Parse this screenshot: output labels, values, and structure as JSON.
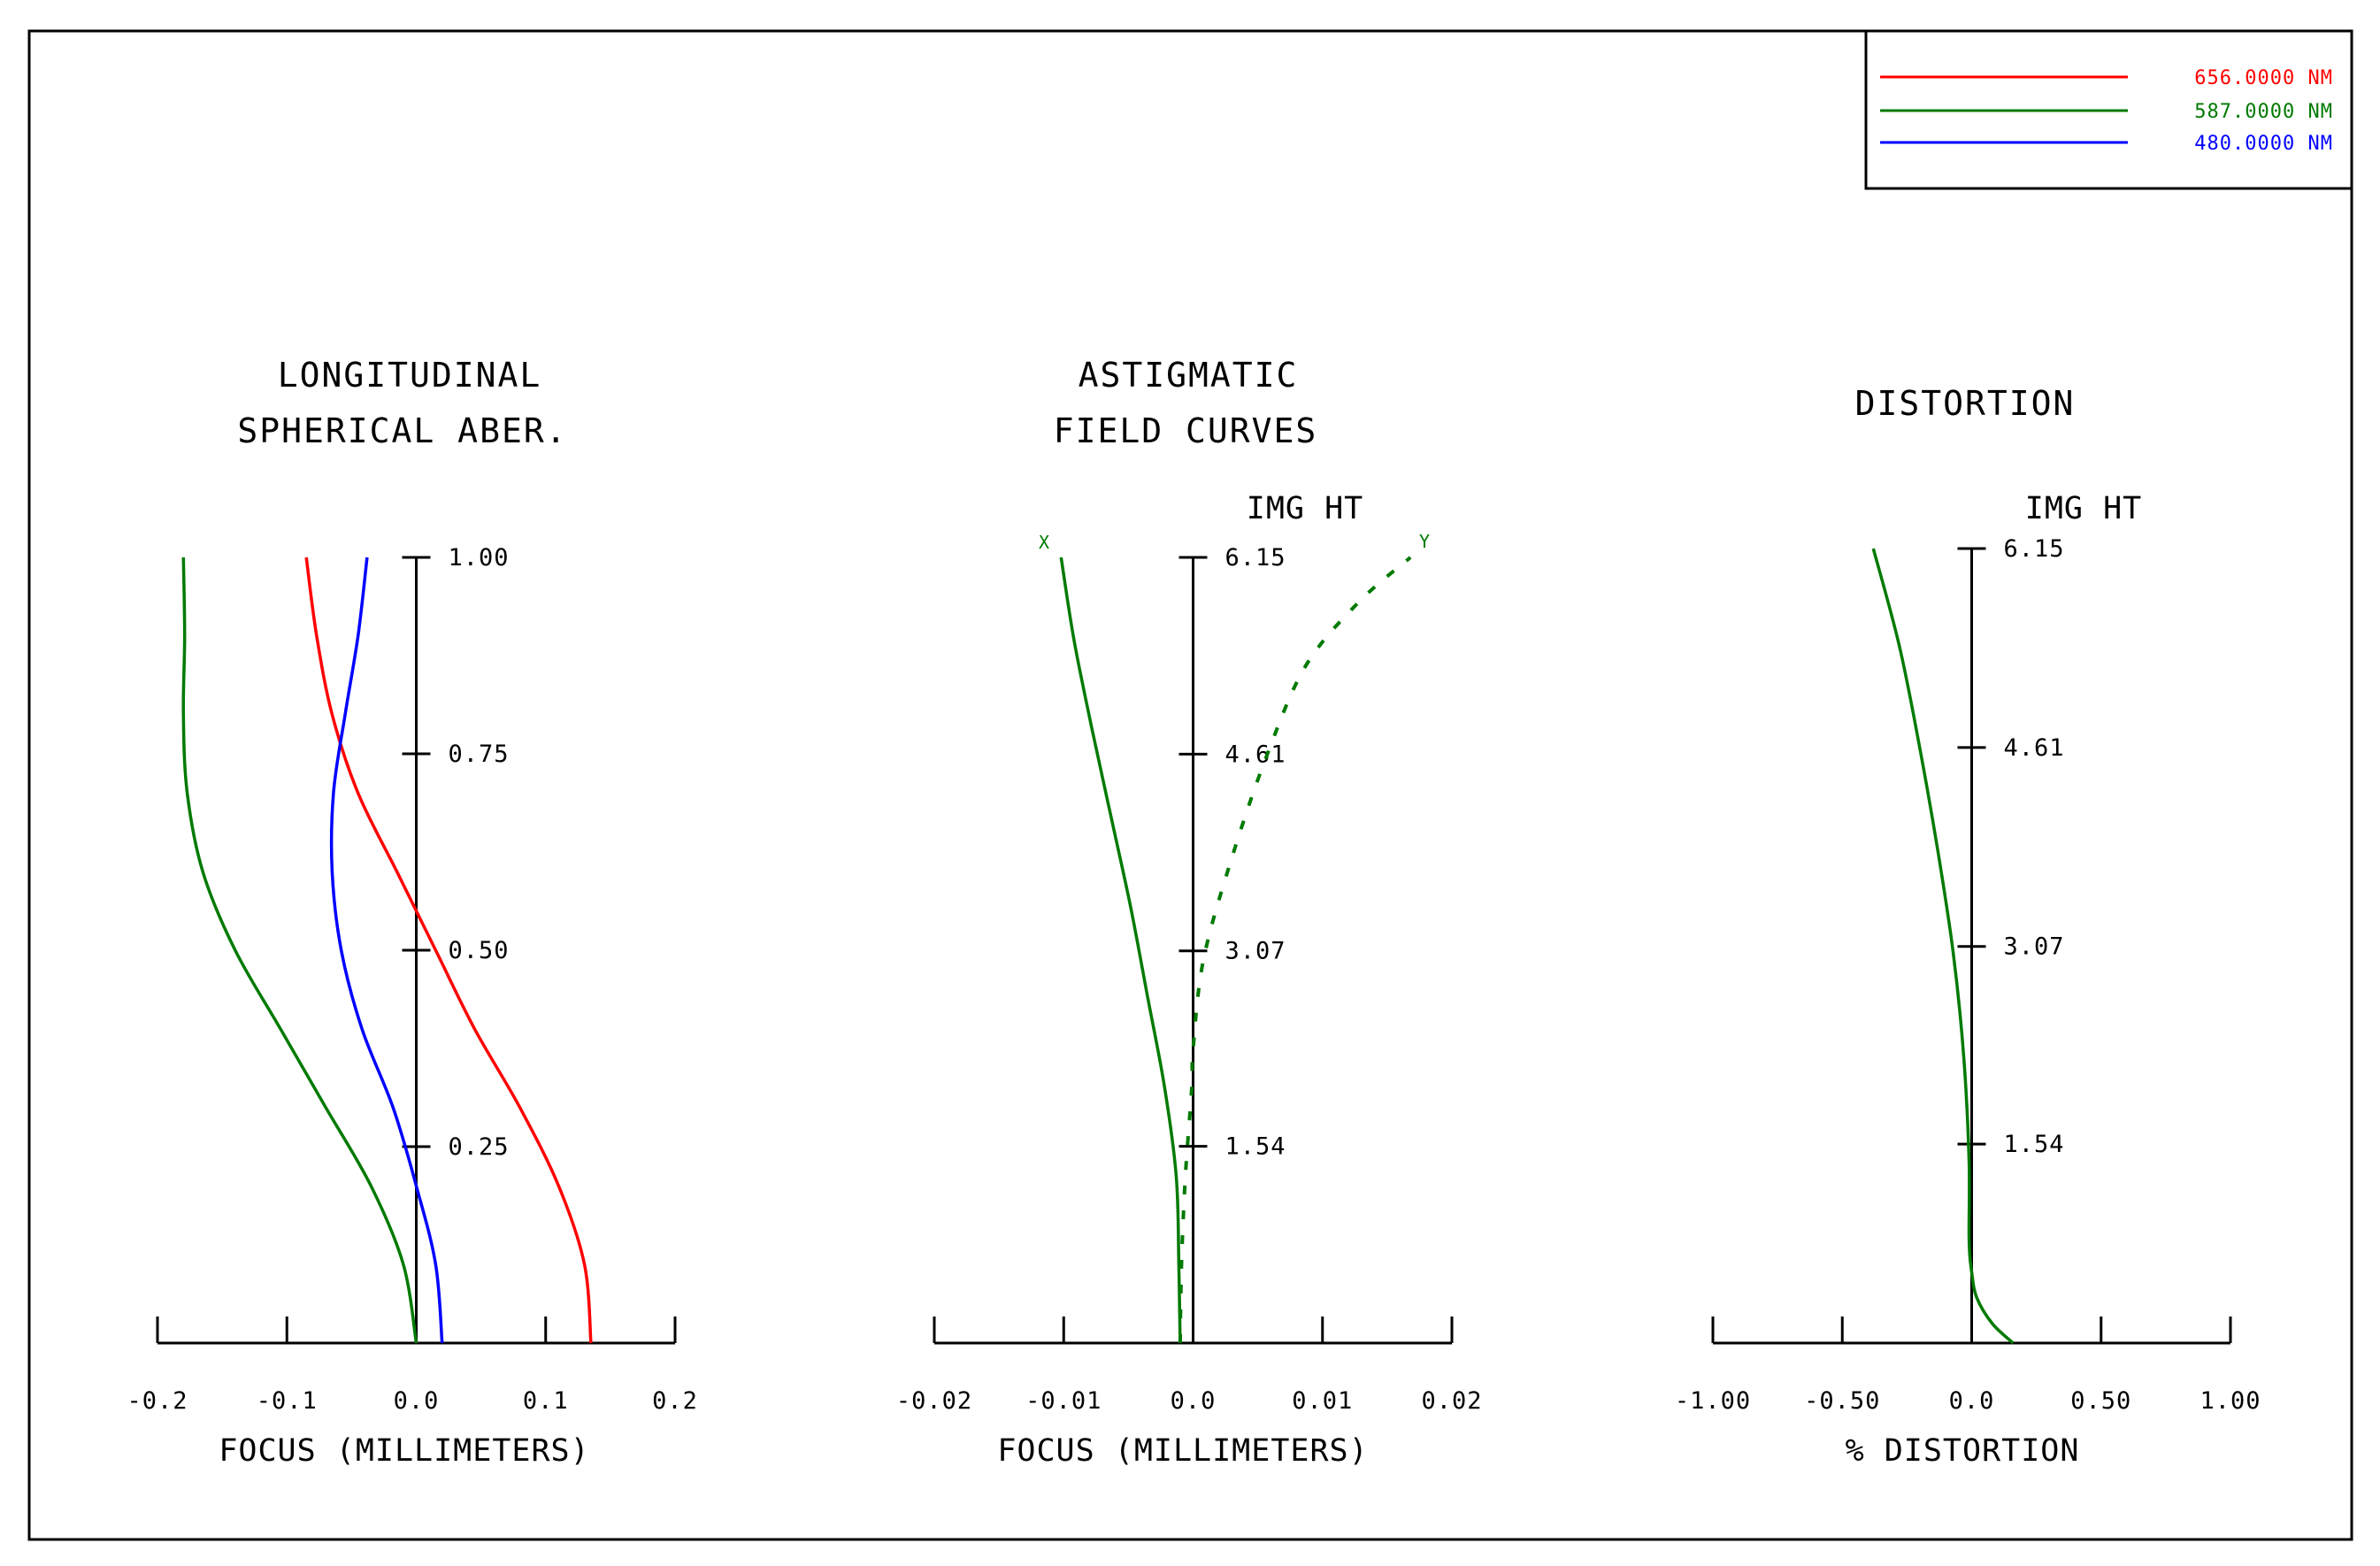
{
  "legend": [
    {
      "label": "656.0000 NM",
      "color": "#ff0000"
    },
    {
      "label": "587.0000 NM",
      "color": "#007a00"
    },
    {
      "label": "480.0000 NM",
      "color": "#0000ff"
    }
  ],
  "chart_data": [
    {
      "type": "line",
      "title_lines": [
        "LONGITUDINAL",
        "SPHERICAL ABER."
      ],
      "xlabel": "FOCUS (MILLIMETERS)",
      "xlim": [
        -0.2,
        0.2
      ],
      "ylim": [
        0,
        1
      ],
      "x_ticks": [
        -0.2,
        -0.1,
        0.0,
        0.1,
        0.2
      ],
      "x_tick_labels": [
        "-0.2",
        "-0.1",
        "0.0",
        "0.1",
        "0.2"
      ],
      "y_ticks": [
        0.25,
        0.5,
        0.75,
        1.0
      ],
      "y_tick_labels": [
        "0.25",
        "0.50",
        "0.75",
        "1.00"
      ],
      "series": [
        {
          "name": "656.0000 NM",
          "color": "#ff0000",
          "style": "solid",
          "points": [
            [
              0.135,
              0
            ],
            [
              0.13,
              0.1
            ],
            [
              0.11,
              0.2
            ],
            [
              0.08,
              0.3
            ],
            [
              0.045,
              0.4
            ],
            [
              0.015,
              0.5
            ],
            [
              -0.015,
              0.6
            ],
            [
              -0.045,
              0.7
            ],
            [
              -0.065,
              0.8
            ],
            [
              -0.077,
              0.9
            ],
            [
              -0.085,
              1.0
            ]
          ]
        },
        {
          "name": "587.0000 NM",
          "color": "#007a00",
          "style": "solid",
          "points": [
            [
              0.0,
              0
            ],
            [
              -0.01,
              0.1
            ],
            [
              -0.035,
              0.2
            ],
            [
              -0.07,
              0.3
            ],
            [
              -0.105,
              0.4
            ],
            [
              -0.14,
              0.5
            ],
            [
              -0.165,
              0.6
            ],
            [
              -0.177,
              0.7
            ],
            [
              -0.18,
              0.8
            ],
            [
              -0.179,
              0.9
            ],
            [
              -0.18,
              1.0
            ]
          ]
        },
        {
          "name": "480.0000 NM",
          "color": "#0000ff",
          "style": "solid",
          "points": [
            [
              0.02,
              0
            ],
            [
              0.015,
              0.1
            ],
            [
              0.0,
              0.2
            ],
            [
              -0.018,
              0.3
            ],
            [
              -0.042,
              0.4
            ],
            [
              -0.058,
              0.5
            ],
            [
              -0.065,
              0.6
            ],
            [
              -0.064,
              0.7
            ],
            [
              -0.055,
              0.8
            ],
            [
              -0.045,
              0.9
            ],
            [
              -0.038,
              1.0
            ]
          ]
        }
      ]
    },
    {
      "type": "line",
      "title_lines": [
        "ASTIGMATIC",
        "FIELD CURVES"
      ],
      "ylabel": "IMG HT",
      "xlabel": "FOCUS (MILLIMETERS)",
      "xlim": [
        -0.02,
        0.02
      ],
      "ylim": [
        0,
        6.15
      ],
      "x_ticks": [
        -0.02,
        -0.01,
        0.0,
        0.01,
        0.02
      ],
      "x_tick_labels": [
        "-0.02",
        "-0.01",
        "0.0",
        "0.01",
        "0.02"
      ],
      "y_ticks": [
        1.54,
        3.07,
        4.61,
        6.15
      ],
      "y_tick_labels": [
        "1.54",
        "3.07",
        "4.61",
        "6.15"
      ],
      "curve_labels": {
        "x": "X",
        "y": "Y"
      },
      "series": [
        {
          "name": "X",
          "color": "#007a00",
          "style": "solid",
          "points": [
            [
              -0.001,
              0
            ],
            [
              -0.0011,
              0.6
            ],
            [
              -0.0013,
              1.3
            ],
            [
              -0.0022,
              2.0
            ],
            [
              -0.0035,
              2.7
            ],
            [
              -0.0048,
              3.4
            ],
            [
              -0.0063,
              4.1
            ],
            [
              -0.0078,
              4.8
            ],
            [
              -0.0092,
              5.5
            ],
            [
              -0.0102,
              6.15
            ]
          ]
        },
        {
          "name": "Y",
          "color": "#007a00",
          "style": "dotted",
          "points": [
            [
              -0.001,
              0
            ],
            [
              -0.0009,
              0.6
            ],
            [
              -0.0006,
              1.3
            ],
            [
              -0.0001,
              2.0
            ],
            [
              0.0,
              2.3
            ],
            [
              0.0008,
              3.0
            ],
            [
              0.003,
              3.8
            ],
            [
              0.0057,
              4.6
            ],
            [
              0.0087,
              5.3
            ],
            [
              0.0128,
              5.8
            ],
            [
              0.0168,
              6.15
            ]
          ]
        }
      ]
    },
    {
      "type": "line",
      "title_lines": [
        "DISTORTION"
      ],
      "ylabel": "IMG HT",
      "xlabel": "% DISTORTION",
      "xlim": [
        -1.0,
        1.0
      ],
      "ylim": [
        0,
        6.15
      ],
      "x_ticks": [
        -1.0,
        -0.5,
        0.0,
        0.5,
        1.0
      ],
      "x_tick_labels": [
        "-1.00",
        "-0.50",
        "0.0",
        "0.50",
        "1.00"
      ],
      "y_ticks": [
        1.54,
        3.07,
        4.61,
        6.15
      ],
      "y_tick_labels": [
        "1.54",
        "3.07",
        "4.61",
        "6.15"
      ],
      "series": [
        {
          "name": "587.0000 NM",
          "color": "#007a00",
          "style": "solid",
          "points": [
            [
              0.16,
              0
            ],
            [
              0.08,
              0.15
            ],
            [
              0.02,
              0.35
            ],
            [
              0.0,
              0.55
            ],
            [
              -0.01,
              0.8
            ],
            [
              -0.01,
              1.4
            ],
            [
              -0.03,
              2.2
            ],
            [
              -0.07,
              3.0
            ],
            [
              -0.13,
              3.8
            ],
            [
              -0.2,
              4.6
            ],
            [
              -0.28,
              5.4
            ],
            [
              -0.38,
              6.15
            ]
          ]
        }
      ]
    }
  ]
}
